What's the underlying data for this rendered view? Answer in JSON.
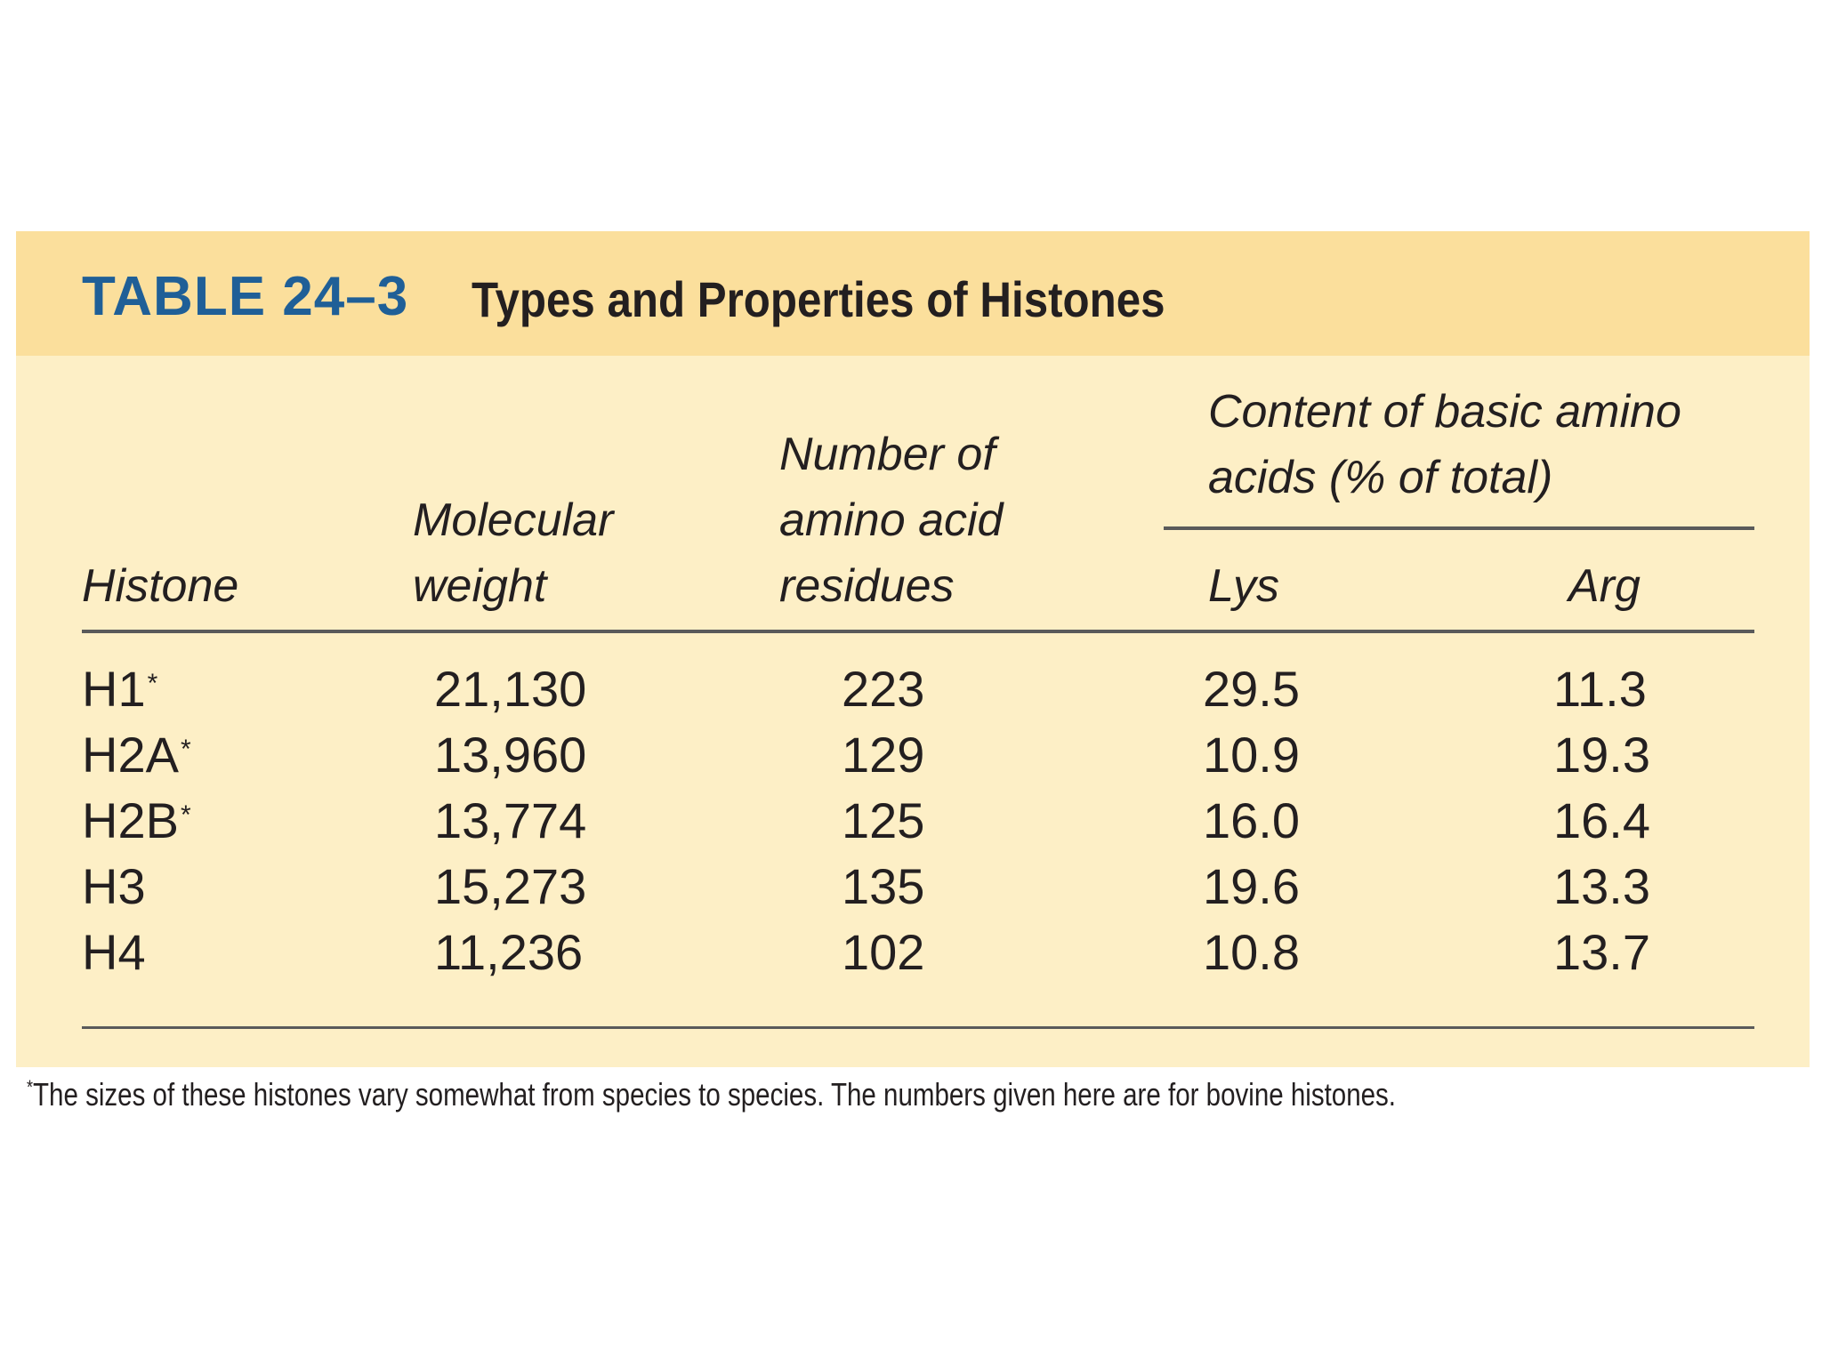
{
  "table": {
    "number": "TABLE 24–3",
    "caption": "Types and Properties of Histones",
    "headers": {
      "histone": "Histone",
      "molecular_weight_line1": "Molecular",
      "molecular_weight_line2": "weight",
      "residues_line1": "Number of",
      "residues_line2": "amino acid",
      "residues_line3": "residues",
      "content_line1": "Content of basic amino",
      "content_line2": "acids (% of total)",
      "lys": "Lys",
      "arg": "Arg"
    },
    "rows": [
      {
        "histone": "H1",
        "marker": "*",
        "molecular_weight": "21,130",
        "residues": "223",
        "lys": "29.5",
        "arg": "11.3"
      },
      {
        "histone": "H2A",
        "marker": "*",
        "molecular_weight": "13,960",
        "residues": "129",
        "lys": "10.9",
        "arg": "19.3"
      },
      {
        "histone": "H2B",
        "marker": "*",
        "molecular_weight": "13,774",
        "residues": "125",
        "lys": "16.0",
        "arg": "16.4"
      },
      {
        "histone": "H3",
        "marker": "",
        "molecular_weight": "15,273",
        "residues": "135",
        "lys": "19.6",
        "arg": "13.3"
      },
      {
        "histone": "H4",
        "marker": "",
        "molecular_weight": "11,236",
        "residues": "102",
        "lys": "10.8",
        "arg": "13.7"
      }
    ],
    "footnote_marker": "*",
    "footnote": "The sizes of these histones vary somewhat from species to species. The numbers given here are for bovine histones."
  },
  "colors": {
    "title_bar": "#fbdf9c",
    "body": "#fdefc6",
    "table_number": "#1f5f97"
  }
}
